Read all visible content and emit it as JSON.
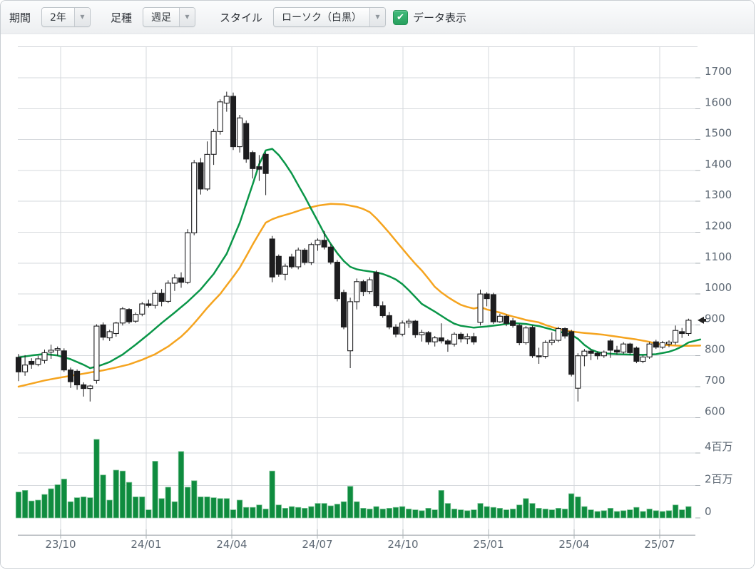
{
  "toolbar": {
    "period_label": "期間",
    "period_value": "2年",
    "bartype_label": "足種",
    "bartype_value": "週足",
    "style_label": "スタイル",
    "style_value": "ローソク（白黒）",
    "data_checkbox_label": "データ表示",
    "data_checkbox_checked": true,
    "caret": "▼",
    "check_glyph": "✔"
  },
  "chart_data": {
    "type": "candlestick",
    "title": "",
    "x_axis_labels": [
      "23/10",
      "24/01",
      "24/04",
      "24/07",
      "24/10",
      "25/01",
      "25/04",
      "25/07"
    ],
    "price_axis": {
      "min": 600,
      "max": 1700,
      "step": 100,
      "ticks": [
        1700,
        1600,
        1500,
        1400,
        1300,
        1200,
        1100,
        1000,
        900,
        800,
        700,
        600
      ]
    },
    "volume_axis": [
      {
        "value": 4,
        "label": "4百万"
      },
      {
        "value": 2,
        "label": "2百万"
      },
      {
        "value": 0,
        "label": "0"
      }
    ],
    "current_price": 915,
    "colors": {
      "ma_short": "#0a9648",
      "ma_long": "#f5a41f",
      "volume_fill": "#0f8c3f",
      "volume_border": "#7cc496",
      "candle": "#1d1d1f",
      "candle_up_fill": "#ffffff",
      "grid": "#d5d8dc",
      "axis_text": "#5d6874",
      "axis_line": "#b6babf",
      "tick": "#aab0b6",
      "marker": "#222222"
    },
    "candles": [
      [
        795,
        806,
        718,
        748,
        1.6
      ],
      [
        748,
        802,
        735,
        770,
        1.7
      ],
      [
        782,
        792,
        758,
        772,
        1.05
      ],
      [
        772,
        800,
        766,
        790,
        1.1
      ],
      [
        785,
        820,
        775,
        810,
        1.45
      ],
      [
        812,
        836,
        790,
        818,
        1.8
      ],
      [
        818,
        830,
        800,
        823,
        2.05
      ],
      [
        816,
        824,
        748,
        754,
        2.4
      ],
      [
        754,
        762,
        696,
        716,
        1.0
      ],
      [
        750,
        756,
        690,
        706,
        1.25
      ],
      [
        706,
        714,
        668,
        694,
        1.3
      ],
      [
        694,
        706,
        652,
        702,
        1.25
      ],
      [
        720,
        902,
        710,
        896,
        4.85
      ],
      [
        900,
        908,
        850,
        860,
        2.65
      ],
      [
        858,
        884,
        848,
        878,
        1.1
      ],
      [
        872,
        910,
        862,
        906,
        2.95
      ],
      [
        906,
        958,
        898,
        952,
        2.9
      ],
      [
        950,
        954,
        904,
        910,
        2.2
      ],
      [
        912,
        940,
        906,
        934,
        1.3
      ],
      [
        935,
        974,
        928,
        968,
        1.3
      ],
      [
        968,
        982,
        956,
        963,
        0.5
      ],
      [
        963,
        1012,
        953,
        1002,
        3.5
      ],
      [
        1002,
        1016,
        960,
        976,
        1.2
      ],
      [
        976,
        1044,
        970,
        1035,
        1.9
      ],
      [
        1035,
        1064,
        1010,
        1052,
        1.0
      ],
      [
        1052,
        1070,
        1020,
        1038,
        4.1
      ],
      [
        1038,
        1210,
        1032,
        1198,
        1.9
      ],
      [
        1198,
        1434,
        1190,
        1425,
        2.3
      ],
      [
        1425,
        1440,
        1322,
        1340,
        1.3
      ],
      [
        1340,
        1494,
        1333,
        1452,
        1.3
      ],
      [
        1452,
        1534,
        1418,
        1526,
        1.25
      ],
      [
        1526,
        1630,
        1516,
        1622,
        1.2
      ],
      [
        1618,
        1655,
        1590,
        1640,
        1.2
      ],
      [
        1640,
        1652,
        1466,
        1477,
        0.5
      ],
      [
        1477,
        1580,
        1458,
        1570,
        1.1
      ],
      [
        1552,
        1562,
        1425,
        1437,
        0.65
      ],
      [
        1458,
        1464,
        1374,
        1406,
        0.65
      ],
      [
        1412,
        1450,
        1366,
        1404,
        0.8
      ],
      [
        1452,
        1458,
        1320,
        1390,
        0.55
      ],
      [
        1178,
        1188,
        1038,
        1055,
        2.9
      ],
      [
        1122,
        1128,
        1056,
        1064,
        0.8
      ],
      [
        1064,
        1098,
        1044,
        1090,
        0.6
      ],
      [
        1120,
        1130,
        1082,
        1088,
        0.7
      ],
      [
        1088,
        1150,
        1080,
        1142,
        0.65
      ],
      [
        1142,
        1148,
        1094,
        1102,
        0.6
      ],
      [
        1102,
        1166,
        1094,
        1160,
        0.7
      ],
      [
        1160,
        1180,
        1140,
        1174,
        0.9
      ],
      [
        1174,
        1204,
        1144,
        1152,
        0.9
      ],
      [
        1152,
        1162,
        1096,
        1103,
        0.75
      ],
      [
        1103,
        1110,
        976,
        985,
        0.85
      ],
      [
        1005,
        1014,
        886,
        893,
        1.0
      ],
      [
        816,
        988,
        760,
        975,
        1.95
      ],
      [
        975,
        1050,
        950,
        1040,
        1.0
      ],
      [
        1040,
        1046,
        993,
        1008,
        0.6
      ],
      [
        1008,
        1054,
        1000,
        1046,
        0.55
      ],
      [
        1070,
        1076,
        956,
        962,
        0.7
      ],
      [
        962,
        976,
        923,
        930,
        0.55
      ],
      [
        930,
        942,
        886,
        893,
        0.6
      ],
      [
        893,
        902,
        860,
        870,
        0.65
      ],
      [
        870,
        914,
        863,
        906,
        0.7
      ],
      [
        906,
        920,
        890,
        912,
        0.55
      ],
      [
        912,
        916,
        858,
        868,
        0.5
      ],
      [
        868,
        884,
        846,
        875,
        0.45
      ],
      [
        875,
        880,
        836,
        845,
        0.6
      ],
      [
        845,
        864,
        830,
        858,
        0.5
      ],
      [
        858,
        905,
        840,
        848,
        1.7
      ],
      [
        848,
        854,
        813,
        838,
        0.9
      ],
      [
        838,
        876,
        830,
        870,
        0.55
      ],
      [
        870,
        876,
        843,
        855,
        0.5
      ],
      [
        855,
        872,
        838,
        862,
        0.45
      ],
      [
        862,
        874,
        836,
        845,
        0.5
      ],
      [
        908,
        1014,
        898,
        1000,
        0.9
      ],
      [
        1000,
        1006,
        960,
        985,
        0.7
      ],
      [
        998,
        1004,
        903,
        910,
        0.65
      ],
      [
        910,
        936,
        906,
        928,
        0.6
      ],
      [
        928,
        934,
        896,
        905,
        0.5
      ],
      [
        913,
        922,
        891,
        898,
        0.55
      ],
      [
        898,
        904,
        834,
        842,
        0.8
      ],
      [
        842,
        896,
        836,
        890,
        1.2
      ],
      [
        892,
        898,
        793,
        800,
        0.9
      ],
      [
        800,
        826,
        774,
        798,
        0.6
      ],
      [
        798,
        850,
        791,
        843,
        0.55
      ],
      [
        843,
        876,
        834,
        850,
        0.5
      ],
      [
        850,
        894,
        844,
        888,
        0.6
      ],
      [
        888,
        892,
        856,
        864,
        0.55
      ],
      [
        878,
        884,
        733,
        740,
        1.5
      ],
      [
        695,
        808,
        652,
        800,
        1.3
      ],
      [
        800,
        822,
        766,
        815,
        0.7
      ],
      [
        815,
        820,
        786,
        808,
        0.5
      ],
      [
        808,
        814,
        788,
        800,
        0.4
      ],
      [
        800,
        817,
        793,
        812,
        0.45
      ],
      [
        848,
        854,
        793,
        818,
        0.6
      ],
      [
        818,
        832,
        804,
        812,
        0.4
      ],
      [
        812,
        844,
        806,
        838,
        0.45
      ],
      [
        838,
        842,
        804,
        810,
        0.5
      ],
      [
        825,
        830,
        776,
        782,
        0.65
      ],
      [
        782,
        802,
        776,
        796,
        0.4
      ],
      [
        796,
        844,
        790,
        838,
        0.55
      ],
      [
        845,
        852,
        822,
        828,
        0.45
      ],
      [
        828,
        848,
        822,
        842,
        0.4
      ],
      [
        838,
        850,
        828,
        844,
        0.45
      ],
      [
        844,
        898,
        836,
        882,
        0.8
      ],
      [
        878,
        890,
        858,
        872,
        0.5
      ],
      [
        872,
        920,
        864,
        915,
        0.7
      ]
    ],
    "ma_short_anchors": [
      [
        0,
        795
      ],
      [
        2,
        801
      ],
      [
        4,
        806
      ],
      [
        6,
        801
      ],
      [
        8,
        789
      ],
      [
        10,
        771
      ],
      [
        11,
        760
      ],
      [
        12,
        765
      ],
      [
        13,
        772
      ],
      [
        14,
        780
      ],
      [
        16,
        804
      ],
      [
        18,
        836
      ],
      [
        20,
        870
      ],
      [
        22,
        906
      ],
      [
        24,
        940
      ],
      [
        26,
        975
      ],
      [
        28,
        1015
      ],
      [
        30,
        1065
      ],
      [
        32,
        1130
      ],
      [
        34,
        1230
      ],
      [
        36,
        1355
      ],
      [
        37,
        1420
      ],
      [
        38,
        1465
      ],
      [
        39,
        1470
      ],
      [
        40,
        1450
      ],
      [
        41,
        1422
      ],
      [
        42,
        1390
      ],
      [
        43,
        1352
      ],
      [
        44,
        1315
      ],
      [
        45,
        1275
      ],
      [
        46,
        1236
      ],
      [
        47,
        1196
      ],
      [
        48,
        1162
      ],
      [
        49,
        1132
      ],
      [
        50,
        1107
      ],
      [
        51,
        1088
      ],
      [
        52,
        1080
      ],
      [
        53,
        1076
      ],
      [
        54,
        1073
      ],
      [
        55,
        1070
      ],
      [
        56,
        1065
      ],
      [
        57,
        1057
      ],
      [
        58,
        1047
      ],
      [
        59,
        1032
      ],
      [
        60,
        1012
      ],
      [
        61,
        990
      ],
      [
        62,
        968
      ],
      [
        64,
        943
      ],
      [
        66,
        916
      ],
      [
        67,
        904
      ],
      [
        68,
        897
      ],
      [
        70,
        891
      ],
      [
        72,
        895
      ],
      [
        74,
        900
      ],
      [
        76,
        906
      ],
      [
        78,
        903
      ],
      [
        80,
        896
      ],
      [
        82,
        885
      ],
      [
        84,
        873
      ],
      [
        85,
        868
      ],
      [
        86,
        855
      ],
      [
        87,
        835
      ],
      [
        88,
        820
      ],
      [
        89,
        812
      ],
      [
        90,
        808
      ],
      [
        92,
        805
      ],
      [
        94,
        804
      ],
      [
        96,
        803
      ],
      [
        98,
        805
      ],
      [
        100,
        813
      ],
      [
        101,
        820
      ],
      [
        102,
        830
      ],
      [
        103,
        843
      ],
      [
        104.8,
        853
      ]
    ],
    "ma_long_anchors": [
      [
        0,
        700
      ],
      [
        2,
        710
      ],
      [
        4,
        720
      ],
      [
        6,
        728
      ],
      [
        8,
        735
      ],
      [
        10,
        742
      ],
      [
        11,
        746
      ],
      [
        13,
        753
      ],
      [
        15,
        762
      ],
      [
        17,
        772
      ],
      [
        19,
        787
      ],
      [
        21,
        805
      ],
      [
        23,
        830
      ],
      [
        25,
        862
      ],
      [
        26,
        882
      ],
      [
        27,
        905
      ],
      [
        28,
        930
      ],
      [
        29,
        955
      ],
      [
        30,
        978
      ],
      [
        31,
        1000
      ],
      [
        32,
        1028
      ],
      [
        33,
        1056
      ],
      [
        34,
        1085
      ],
      [
        35,
        1122
      ],
      [
        36,
        1160
      ],
      [
        37,
        1196
      ],
      [
        38,
        1231
      ],
      [
        39,
        1242
      ],
      [
        40,
        1250
      ],
      [
        42,
        1262
      ],
      [
        44,
        1276
      ],
      [
        46,
        1286
      ],
      [
        48,
        1292
      ],
      [
        50,
        1290
      ],
      [
        52,
        1282
      ],
      [
        53,
        1275
      ],
      [
        54,
        1265
      ],
      [
        55,
        1245
      ],
      [
        56,
        1222
      ],
      [
        57,
        1198
      ],
      [
        58,
        1172
      ],
      [
        59,
        1147
      ],
      [
        60,
        1122
      ],
      [
        61,
        1098
      ],
      [
        62,
        1076
      ],
      [
        63,
        1050
      ],
      [
        64,
        1023
      ],
      [
        65,
        1005
      ],
      [
        66,
        990
      ],
      [
        67,
        977
      ],
      [
        68,
        965
      ],
      [
        69,
        958
      ],
      [
        70,
        953
      ],
      [
        71,
        958
      ],
      [
        72,
        950
      ],
      [
        74,
        940
      ],
      [
        75,
        933
      ],
      [
        76,
        927
      ],
      [
        77,
        922
      ],
      [
        78,
        916
      ],
      [
        79,
        912
      ],
      [
        80,
        908
      ],
      [
        81,
        900
      ],
      [
        82,
        893
      ],
      [
        83,
        887
      ],
      [
        84,
        882
      ],
      [
        85,
        879
      ],
      [
        86,
        876
      ],
      [
        87,
        874
      ],
      [
        88,
        872
      ],
      [
        89,
        870
      ],
      [
        90,
        868
      ],
      [
        91,
        865
      ],
      [
        92,
        862
      ],
      [
        93,
        859
      ],
      [
        94,
        856
      ],
      [
        95,
        853
      ],
      [
        96,
        849
      ],
      [
        97,
        845
      ],
      [
        98,
        839
      ],
      [
        99,
        836
      ],
      [
        100,
        834
      ],
      [
        101,
        833
      ],
      [
        102,
        832
      ],
      [
        103,
        832
      ],
      [
        104.8,
        833
      ]
    ]
  }
}
